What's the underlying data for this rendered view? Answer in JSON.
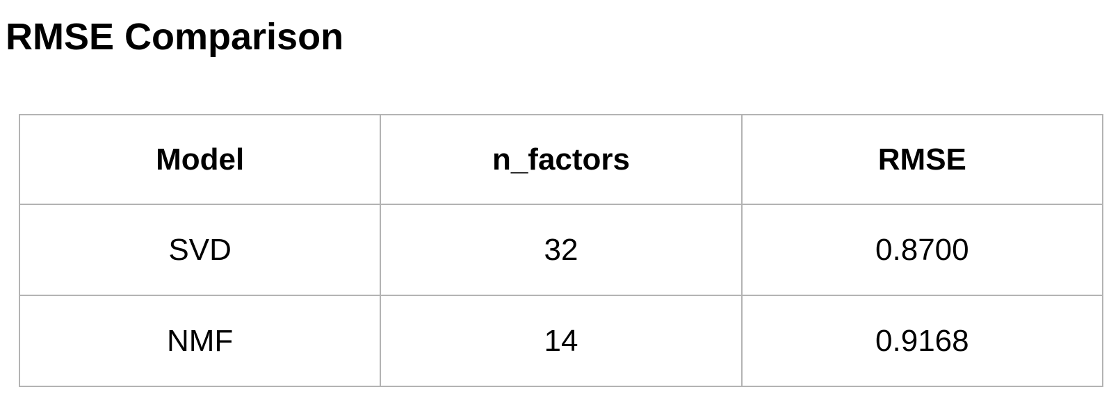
{
  "title": "RMSE Comparison",
  "table": {
    "headers": [
      "Model",
      "n_factors",
      "RMSE"
    ],
    "rows": [
      [
        "SVD",
        "32",
        "0.8700"
      ],
      [
        "NMF",
        "14",
        "0.9168"
      ]
    ]
  },
  "colors": {
    "border": "#b3b3b3",
    "text": "#000000",
    "background": "#ffffff"
  }
}
